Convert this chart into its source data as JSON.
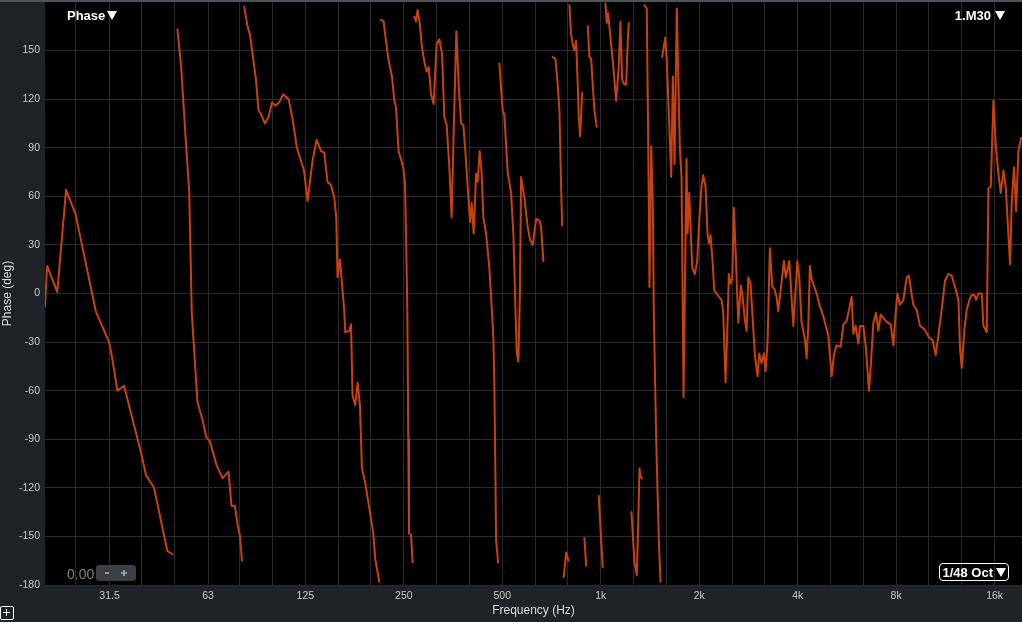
{
  "chart_data": {
    "type": "line",
    "title": "Phase",
    "xlabel": "Frequency (Hz)",
    "ylabel": "Phase (deg)",
    "annotations": [
      "1.M30",
      "1/48 Oct",
      "0.00"
    ],
    "log": "x",
    "grid": true,
    "xlim": [
      20,
      19400
    ],
    "ylim": [
      -180,
      180
    ],
    "xticks": [
      {
        "value": 24.8,
        "label": null
      },
      31.5,
      {
        "value": 39.37,
        "label": null
      },
      {
        "value": 49.61,
        "label": null
      },
      63,
      {
        "value": 78.75,
        "label": null
      },
      {
        "value": 99.21,
        "label": null
      },
      125,
      {
        "value": 157.5,
        "label": null
      },
      {
        "value": 198.4,
        "label": null
      },
      250,
      {
        "value": 315,
        "label": null
      },
      {
        "value": 396.9,
        "label": null
      },
      500,
      {
        "value": 630,
        "label": null
      },
      {
        "value": 793.7,
        "label": null
      },
      {
        "value": 1000,
        "label": "1k"
      },
      {
        "value": 1260,
        "label": null
      },
      {
        "value": 1587,
        "label": null
      },
      {
        "value": 2000,
        "label": "2k"
      },
      {
        "value": 2520,
        "label": null
      },
      {
        "value": 3175,
        "label": null
      },
      {
        "value": 4000,
        "label": "4k"
      },
      {
        "value": 5040,
        "label": null
      },
      {
        "value": 6350,
        "label": null
      },
      {
        "value": 8000,
        "label": "8k"
      },
      {
        "value": 10079,
        "label": null
      },
      {
        "value": 12699,
        "label": null
      },
      {
        "value": 16000,
        "label": "16k"
      }
    ],
    "yticks": [
      -180,
      -150,
      -120,
      -90,
      -60,
      -30,
      0,
      30,
      60,
      90,
      120,
      150
    ],
    "series": [
      {
        "color": "#c8420e",
        "x": [
          20,
          20.3,
          21.8,
          23.2,
          24.8,
          28.6,
          31.4,
          32.1,
          33.3,
          34.9,
          35.7,
          39.3,
          40.7,
          43.1,
          47.3,
          49.1,
          50,
          50.8,
          52.1,
          53.9,
          55.2,
          56.2,
          58.5,
          60.6,
          62.3,
          63.8,
          66.9,
          69.8,
          72.8,
          74.3,
          76.1,
          77.5,
          78.9,
          80.0,
          80.6,
          81.3,
          83.2,
          84.6,
          86.2,
          88.3,
          89.9,
          91.4,
          94.0,
          96.5,
          98.8,
          101.1,
          104.0,
          107.0,
          111.1,
          114.2,
          117.8,
          123.8,
          127.0,
          131.5,
          135.3,
          139.5,
          142.8,
          146.1,
          149.7,
          153.3,
          155.4,
          156.8,
          159.5,
          164.4,
          165.6,
          170.3,
          172.4,
          174.3,
          177.6,
          180.6,
          183.6,
          186.2,
          190.6,
          198.4,
          201.6,
          204.5,
          210.4,
          211.5,
          212.9,
          216.9,
          220.5,
          224.6,
          230.0,
          233.9,
          236.6,
          241.0,
          249.0,
          252.1,
          253.9,
          256.3,
          258.0,
          259.3,
          263.0,
          266.0,
          267.5,
          269.2,
          272.4,
          275.5,
          278.8,
          284.2,
          288.8,
          293.6,
          297.8,
          302.8,
          308.4,
          315.0,
          321.0,
          327.2,
          332.5,
          338.0,
          344.5,
          350.1,
          355.0,
          361.9,
          367.8,
          374.1,
          380.2,
          385.5,
          391.9,
          398.6,
          403.1,
          408.8,
          415.8,
          420.4,
          426.4,
          432.5,
          437.6,
          446.1,
          456.5,
          465.3,
          469.7,
          473.0,
          476.3,
          478.6,
          485.5,
          487.5,
          489.9,
          501.4,
          507.4,
          519.4,
          532.0,
          540.6,
          548.3,
          553.4,
          560.0,
          566.0,
          570.8,
          584.2,
          598.0,
          608.2,
          619.4,
          634.5,
          649.3,
          657.1,
          667.9,
          690,
          713.1,
          726.8,
          738.7,
          747.6,
          756.6,
          762.0,
          766,
          770.5,
          783.9,
          796.4,
          799,
          802.1,
          811.8,
          821.0,
          830.9,
          841.0,
          850.5,
          856.4,
          865.0,
          877.1,
          884,
          891.4,
          902.3,
          907,
          912.4,
          923.5,
          934.6,
          945.2,
          956.6,
          972.2,
          979,
          986.0,
          1002.8,
          1014.2,
          1024,
          1033.7,
          1043.2,
          1053.5,
          1068.5,
          1088.2,
          1114.5,
          1135.2,
          1148.7,
          1162.7,
          1181.7,
          1196.0,
          1209.5,
          1218.0,
          1230,
          1241.3,
          1268.0,
          1288.8,
          1304.2,
          1313.4,
          1322.7,
          1334.8,
          1347,
          1360.2,
          1382.6,
          1392.4,
          1402.3,
          1409.2,
          1426.2,
          1442.4,
          1452.5,
          1477.4,
          1505.0,
          1522.9,
          1532,
          1541,
          1574,
          1592,
          1642,
          1661,
          1681,
          1708,
          1745,
          1766,
          1791,
          1829,
          1842,
          1864,
          1885,
          1904,
          1939,
          1972,
          2000,
          2033,
          2057,
          2091,
          2120,
          2140,
          2166,
          2197,
          2223,
          2259,
          2340,
          2368,
          2407,
          2436,
          2464,
          2494,
          2524,
          2552,
          2583,
          2633,
          2681,
          2714,
          2758,
          2791,
          2825,
          2871,
          2959,
          3016,
          3052,
          3102,
          3153,
          3191,
          3236,
          3289,
          3345,
          3393,
          3448,
          3488,
          3630,
          3682,
          3771,
          3879,
          3990,
          4045,
          4111,
          4208,
          4259,
          4310,
          4359,
          4412,
          4570,
          4677,
          4791,
          4962,
          5079,
          5162,
          5261,
          5412,
          5516,
          5646,
          5848,
          5918,
          6015,
          6131,
          6200,
          6350,
          6468,
          6606,
          6700,
          6814,
          6940,
          7058,
          7174,
          7520,
          7697,
          7846,
          7973,
          8068,
          8217,
          8417,
          8614,
          8755,
          8879,
          9031,
          9244,
          9461,
          9758,
          10080,
          10346,
          10567,
          10770,
          11023,
          11283,
          11557,
          11828,
          12192,
          12400,
          12541,
          12692,
          12936,
          13147,
          13400,
          13618,
          13880,
          14038,
          14277,
          14613,
          14789,
          15137,
          15318,
          15569,
          15866,
          16124,
          16434,
          16702,
          17024,
          17302,
          17834,
          18050,
          18344,
          18603,
          18922,
          19270
        ],
        "values": [
          -8,
          17,
          1,
          64,
          49,
          -11,
          -30,
          -40,
          -60,
          -57,
          -65,
          -98,
          -112,
          -120,
          -159,
          -161,
          null,
          163,
          141,
          94,
          63,
          -12,
          -67,
          -78,
          -89,
          -91,
          -106,
          -114,
          -110,
          -131,
          -131,
          -142,
          -150,
          -165,
          null,
          177,
          165,
          160,
          148,
          132,
          113,
          111,
          105,
          109,
          118,
          116,
          118,
          123,
          120,
          108,
          90,
          76,
          57,
          82,
          95,
          88,
          87,
          69,
          67,
          59,
          47,
          10,
          21,
          -11,
          -24,
          -23,
          -19,
          -63,
          -69,
          -55,
          -69,
          -108,
          -117,
          -139,
          -148,
          -164,
          -178,
          null,
          169,
          168,
          156,
          144,
          134,
          119,
          115,
          88,
          78,
          68,
          37,
          -11,
          -90,
          -148,
          -149,
          -166,
          null,
          171,
          168,
          175,
          169,
          152,
          143,
          137,
          140,
          123,
          117,
          154,
          157,
          148,
          109,
          104,
          78,
          47,
          99,
          162,
          129,
          105,
          104,
          88,
          66,
          44,
          56,
          37,
          74,
          69,
          88,
          74,
          47,
          37,
          16,
          -12,
          -28,
          -59,
          -110,
          -152,
          -166,
          null,
          142,
          113,
          110,
          75,
          62,
          37,
          -8,
          -36,
          -42,
          0,
          72,
          59,
          41,
          33,
          30,
          46,
          45,
          41,
          20,
          null,
          146,
          145,
          129,
          113,
          66,
          42,
          null,
          -175,
          -160,
          -165,
          null,
          178,
          160,
          154,
          150,
          156,
          129,
          109,
          97,
          124,
          null,
          -151,
          -168,
          null,
          165,
          146,
          145,
          129,
          113,
          103,
          null,
          -125,
          -152,
          -169,
          null,
          179,
          167,
          173,
          160,
          144,
          119,
          140,
          168,
          132,
          129,
          129,
          156,
          167,
          null,
          -135,
          -166,
          -174,
          -135,
          -108,
          -113,
          -114,
          null,
          178,
          176,
          119,
          57,
          4,
          91,
          57,
          -11,
          -90,
          -152,
          -178,
          null,
          146,
          158,
          144,
          72,
          134,
          80,
          176,
          90,
          72,
          -64,
          83,
          37,
          62,
          37,
          16,
          12,
          20,
          45,
          66,
          73,
          66,
          37,
          31,
          36,
          20,
          2,
          0,
          -4,
          -11,
          -55,
          -24,
          12,
          6,
          10,
          53,
          27,
          -18,
          5,
          -2,
          -16,
          -23,
          10,
          6,
          -38,
          -51,
          -37,
          -43,
          -37,
          -48,
          -30,
          28,
          4,
          3,
          -2,
          -11,
          20,
          10,
          20,
          -20,
          20,
          10,
          -18,
          -28,
          -40,
          -20,
          17,
          9,
          0,
          -8,
          -14,
          -26,
          -51,
          -38,
          -32,
          -33,
          -19,
          -17,
          -2,
          -25,
          -20,
          -31,
          -20,
          -20,
          -34,
          -60,
          -43,
          -18,
          -12,
          -23,
          -13,
          -18,
          -19,
          -32,
          -12,
          0,
          -7,
          -4,
          10,
          11,
          2,
          -7,
          -10,
          -20,
          -22,
          -27,
          -29,
          -38,
          -26,
          -10,
          8,
          12,
          11,
          2,
          -4,
          -34,
          -46,
          -22,
          -10,
          -4,
          -1,
          -1,
          -4,
          0,
          0,
          -20,
          -24,
          65,
          66,
          119,
          92,
          74,
          62,
          76,
          66,
          18,
          57,
          78,
          51,
          88,
          96
        ]
      }
    ]
  }
}
